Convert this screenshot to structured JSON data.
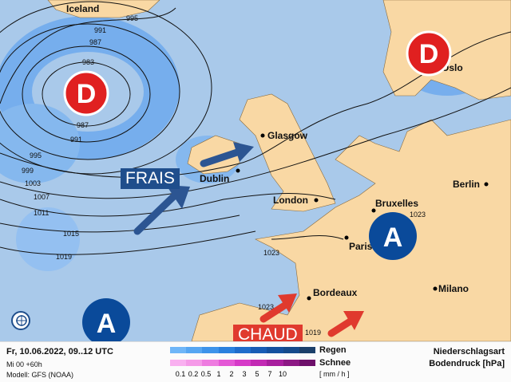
{
  "map": {
    "land_color": "#f9d8a4",
    "sea_color": "#a9c9ea",
    "cities": [
      "Iceland",
      "Glasgow",
      "Dublin",
      "London",
      "Bruxelles",
      "Paris",
      "Berlin",
      "Oslo",
      "Bordeaux",
      "Milano"
    ],
    "isobars": [
      "995",
      "991",
      "987",
      "983",
      "987",
      "991",
      "995",
      "999",
      "1003",
      "1007",
      "1011",
      "1015",
      "1019",
      "1023",
      "1023",
      "1023",
      "1019"
    ],
    "pressure_centers": [
      {
        "letter": "D",
        "type": "low",
        "color": "#e02020"
      },
      {
        "letter": "D",
        "type": "low",
        "color": "#e02020"
      },
      {
        "letter": "A",
        "type": "high",
        "color": "#0a4a9a"
      },
      {
        "letter": "A",
        "type": "high",
        "color": "#0a4a9a"
      }
    ],
    "frais_label": "FRAIS",
    "chaud_label": "CHAUD",
    "frais_color": "#1f4e8c",
    "chaud_color": "#e03a2e",
    "logo_icon": "globe-icon"
  },
  "legend": {
    "date": "Fr, 10.06.2022, 09..12 UTC",
    "run": "Mi 00 +60h",
    "model": "Modell: GFS (NOAA)",
    "rain_label": "Regen",
    "snow_label": "Schnee",
    "unit": "[ mm / h ]",
    "ticks": [
      "0.1",
      "0.2",
      "0.5",
      "1",
      "2",
      "3",
      "5",
      "7",
      "10"
    ],
    "rain_colors": [
      "#6fb6f8",
      "#56a6f2",
      "#3d93ea",
      "#2a80de",
      "#1f6ccb",
      "#185cb5",
      "#14509f",
      "#154a8b",
      "#1b3f6a"
    ],
    "snow_colors": [
      "#f9b0f0",
      "#f59ae8",
      "#ee7ce0",
      "#e458d6",
      "#d63ac8",
      "#c22ab4",
      "#a81f9e",
      "#8c1884",
      "#6d106a"
    ],
    "type_label": "Niederschlagsart",
    "pressure_label": "Bodendruck [hPa]"
  }
}
